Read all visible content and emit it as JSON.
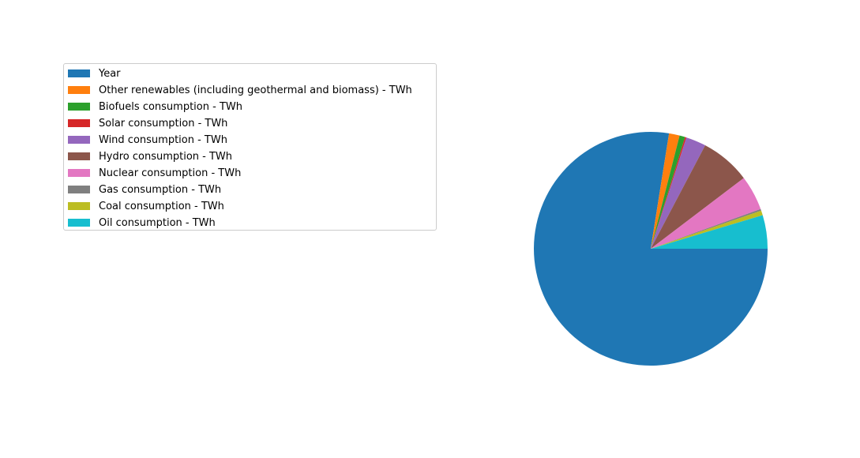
{
  "chart_data": {
    "type": "pie",
    "legend_position": "upper-left",
    "series": [
      {
        "name": "Year",
        "value": 2009,
        "color": "#1f77b4"
      },
      {
        "name": "Other renewables (including geothermal and biomass) - TWh",
        "value": 38,
        "color": "#ff7f0e"
      },
      {
        "name": "Biofuels consumption - TWh",
        "value": 20,
        "color": "#2ca02c"
      },
      {
        "name": "Solar consumption - TWh",
        "value": 5,
        "color": "#d62728"
      },
      {
        "name": "Wind consumption - TWh",
        "value": 72,
        "color": "#9467bd"
      },
      {
        "name": "Hydro consumption - TWh",
        "value": 180,
        "color": "#8c564b"
      },
      {
        "name": "Nuclear consumption - TWh",
        "value": 125,
        "color": "#e377c2"
      },
      {
        "name": "Gas consumption - TWh",
        "value": 6,
        "color": "#7f7f7f"
      },
      {
        "name": "Coal consumption - TWh",
        "value": 17,
        "color": "#bcbd22"
      },
      {
        "name": "Oil consumption - TWh",
        "value": 120,
        "color": "#17becf"
      }
    ]
  }
}
